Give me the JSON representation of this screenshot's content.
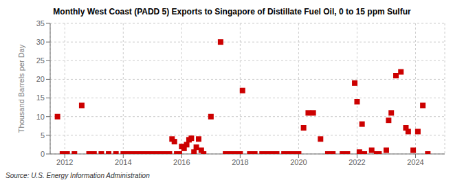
{
  "chart_data": {
    "type": "scatter",
    "title": "Monthly West Coast (PADD 5) Exports to Singapore of Distillate Fuel Oil, 0 to 15 ppm Sulfur",
    "ylabel": "Thousand Barrels per Day",
    "annotations": [
      "Source: U.S. Energy Information Administration"
    ],
    "color": "#cc0000",
    "marker": "square",
    "grid": true,
    "xlim": [
      2011.5,
      2025.0
    ],
    "xticks": [
      2012,
      2014,
      2016,
      2018,
      2020,
      2022,
      2024
    ],
    "ylim": [
      0,
      35
    ],
    "yticks": [
      0,
      5,
      10,
      15,
      20,
      25,
      30,
      35
    ],
    "x": [
      2011.75,
      2011.92,
      2012.08,
      2012.33,
      2012.58,
      2012.83,
      2013.0,
      2013.25,
      2013.5,
      2013.75,
      2014.0,
      2014.08,
      2014.17,
      2014.33,
      2014.42,
      2014.5,
      2014.58,
      2014.67,
      2014.75,
      2014.83,
      2014.92,
      2015.0,
      2015.08,
      2015.17,
      2015.25,
      2015.33,
      2015.42,
      2015.5,
      2015.58,
      2015.67,
      2015.75,
      2015.83,
      2015.92,
      2016.0,
      2016.08,
      2016.17,
      2016.25,
      2016.33,
      2016.42,
      2016.5,
      2016.58,
      2016.67,
      2016.75,
      2017.0,
      2017.33,
      2017.5,
      2017.67,
      2017.83,
      2018.0,
      2018.08,
      2018.33,
      2018.5,
      2018.75,
      2018.92,
      2019.0,
      2019.08,
      2019.25,
      2019.5,
      2019.67,
      2019.83,
      2020.0,
      2020.17,
      2020.33,
      2020.5,
      2020.75,
      2021.0,
      2021.17,
      2021.5,
      2021.67,
      2021.92,
      2022.0,
      2022.08,
      2022.17,
      2022.25,
      2022.5,
      2022.67,
      2022.75,
      2023.0,
      2023.08,
      2023.17,
      2023.33,
      2023.5,
      2023.67,
      2023.75,
      2023.92,
      2024.08,
      2024.25,
      2024.42
    ],
    "values": [
      10.0,
      0.0,
      0.0,
      0.0,
      13.0,
      0.0,
      0.0,
      0.0,
      0.0,
      0.0,
      0.0,
      0.0,
      0.0,
      0.0,
      0.0,
      0.0,
      0.0,
      0.0,
      0.0,
      0.0,
      0.0,
      0.0,
      0.0,
      0.0,
      0.0,
      0.0,
      0.0,
      0.0,
      0.0,
      4.0,
      3.3,
      0.0,
      0.0,
      2.0,
      1.5,
      2.5,
      3.8,
      4.2,
      0.5,
      1.8,
      4.0,
      1.0,
      0.0,
      10.0,
      30.0,
      0.0,
      0.0,
      0.0,
      0.0,
      17.0,
      0.0,
      0.0,
      0.0,
      0.0,
      0.0,
      0.0,
      0.0,
      0.0,
      0.0,
      0.0,
      0.0,
      7.0,
      11.0,
      11.0,
      4.0,
      0.0,
      0.0,
      0.0,
      0.0,
      19.0,
      14.0,
      0.5,
      8.0,
      0.0,
      1.0,
      0.0,
      0.0,
      1.0,
      9.0,
      11.0,
      21.0,
      22.0,
      7.0,
      6.0,
      1.0,
      6.0,
      13.0,
      0.0
    ]
  }
}
